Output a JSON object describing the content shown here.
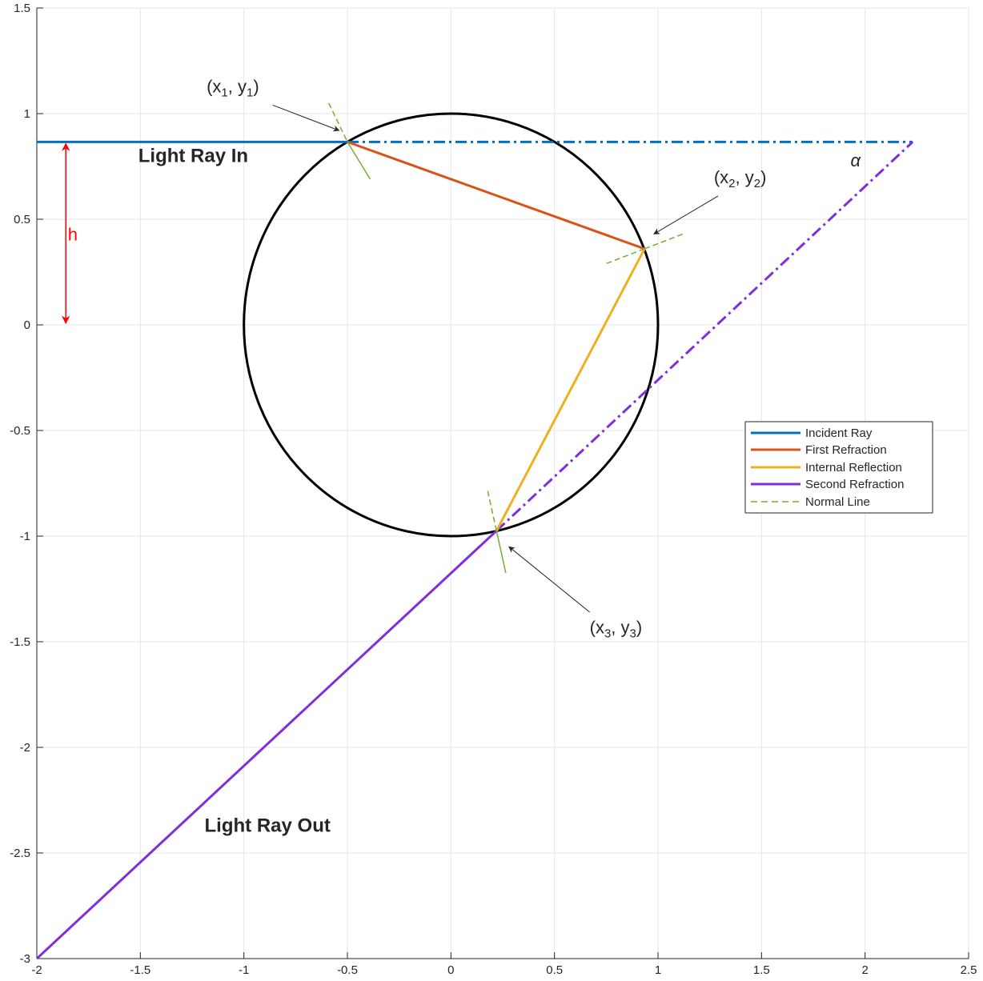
{
  "chart_data": {
    "type": "line",
    "xlim": [
      -2,
      2.5
    ],
    "ylim": [
      -3,
      1.5
    ],
    "x_ticks": [
      -2,
      -1.5,
      -1,
      -0.5,
      0,
      0.5,
      1,
      1.5,
      2,
      2.5
    ],
    "y_ticks": [
      -3,
      -2.5,
      -2,
      -1.5,
      -1,
      -0.5,
      0,
      0.5,
      1,
      1.5
    ],
    "x_tick_labels": [
      "-2",
      "-1.5",
      "-1",
      "-0.5",
      "0",
      "0.5",
      "1",
      "1.5",
      "2",
      "2.5"
    ],
    "y_tick_labels": [
      "-3",
      "-2.5",
      "-2",
      "-1.5",
      "-1",
      "-0.5",
      "0",
      "0.5",
      "1",
      "1.5"
    ],
    "grid": true,
    "legend_position": "right-middle",
    "circle": {
      "center": [
        0,
        0
      ],
      "radius": 1,
      "color": "#000000"
    },
    "series": [
      {
        "name": "Incident Ray",
        "color": "#0072BD",
        "style": "solid",
        "x": [
          -2,
          -0.5
        ],
        "y": [
          0.866,
          0.866
        ]
      },
      {
        "name": "First Refraction",
        "color": "#D95319",
        "style": "solid",
        "x": [
          -0.5,
          0.935
        ],
        "y": [
          0.866,
          0.36
        ]
      },
      {
        "name": "Internal Reflection",
        "color": "#EDB120",
        "style": "solid",
        "x": [
          0.935,
          0.22
        ],
        "y": [
          0.36,
          -0.975
        ]
      },
      {
        "name": "Second Refraction",
        "color": "#7E2FDB",
        "style": "solid",
        "x": [
          0.22,
          -2
        ],
        "y": [
          -0.975,
          -3
        ]
      },
      {
        "name": "Normal Line",
        "color": "#77AC30",
        "style": "dashed",
        "x": [
          -0.59,
          -0.5
        ],
        "y": [
          1.05,
          0.866
        ]
      }
    ],
    "extensions": [
      {
        "color": "#0072BD",
        "style": "dashdot",
        "x": [
          -0.5,
          2.23
        ],
        "y": [
          0.866,
          0.866
        ]
      },
      {
        "color": "#7E2FDB",
        "style": "dashdot",
        "x": [
          0.22,
          2.23
        ],
        "y": [
          -0.975,
          0.866
        ]
      }
    ],
    "normals": [
      {
        "x": [
          -0.59,
          -0.5
        ],
        "y": [
          1.05,
          0.866
        ],
        "style": "dashed"
      },
      {
        "x": [
          -0.5,
          -0.39
        ],
        "y": [
          0.866,
          0.69
        ],
        "style": "solid"
      },
      {
        "x": [
          0.935,
          1.12
        ],
        "y": [
          0.36,
          0.43
        ],
        "style": "dashed"
      },
      {
        "x": [
          0.935,
          0.75
        ],
        "y": [
          0.36,
          0.29
        ],
        "style": "dashed"
      },
      {
        "x": [
          0.22,
          0.175
        ],
        "y": [
          -0.975,
          -0.775
        ],
        "style": "dashed"
      },
      {
        "x": [
          0.22,
          0.265
        ],
        "y": [
          -0.975,
          -1.175
        ],
        "style": "solid"
      }
    ],
    "h_arrow": {
      "x": -1.86,
      "y_from": 0.866,
      "y_to": 0,
      "color": "#FF0000"
    },
    "annotations": {
      "light_in": {
        "text": "Light Ray In",
        "x": -1.51,
        "y": 0.77
      },
      "light_out": {
        "text": "Light Ray Out",
        "x": -1.19,
        "y": -2.4
      },
      "h": {
        "text": "h",
        "x": -1.85,
        "y": 0.4
      },
      "alpha": {
        "text": "α",
        "x": 1.93,
        "y": 0.75
      },
      "p1": {
        "base": "(x",
        "sub": "1",
        "mid": ",  y",
        "sub2": "1",
        "end": ")",
        "x": -1.18,
        "y": 1.1,
        "arrow_from": [
          -0.86,
          1.04
        ],
        "arrow_to": [
          -0.54,
          0.92
        ]
      },
      "p2": {
        "base": "(x",
        "sub": "2",
        "mid": ",  y",
        "sub2": "2",
        "end": ")",
        "x": 1.27,
        "y": 0.67,
        "arrow_from": [
          1.29,
          0.61
        ],
        "arrow_to": [
          0.98,
          0.43
        ]
      },
      "p3": {
        "base": "(x",
        "sub": "3",
        "mid": ",  y",
        "sub2": "3",
        "end": ")",
        "x": 0.67,
        "y": -1.46,
        "arrow_from": [
          0.67,
          -1.36
        ],
        "arrow_to": [
          0.28,
          -1.05
        ]
      }
    }
  }
}
